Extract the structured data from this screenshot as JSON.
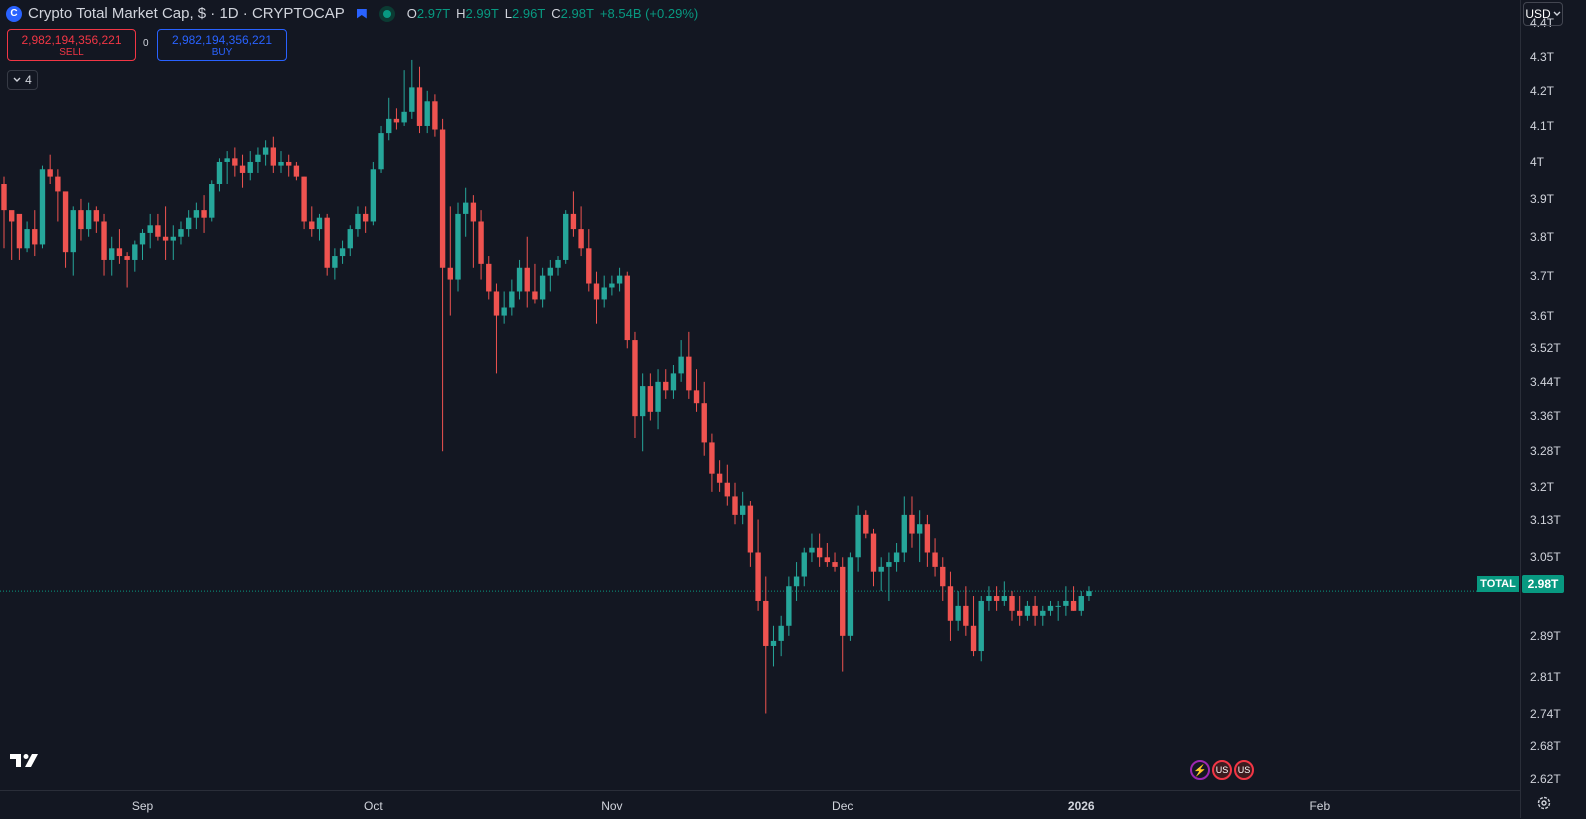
{
  "header": {
    "logo_glyph": "C",
    "title": "Crypto Total Market Cap, $ · 1D · CRYPTOCAP",
    "ohlc": [
      {
        "k": "O",
        "v": "2.97T"
      },
      {
        "k": "H",
        "v": "2.99T"
      },
      {
        "k": "L",
        "v": "2.96T"
      },
      {
        "k": "C",
        "v": "2.98T"
      },
      {
        "k": "",
        "v": "+8.54B (+0.29%)"
      }
    ]
  },
  "trade": {
    "sell_value": "2,982,194,356,221",
    "sell_label": "SELL",
    "buy_value": "2,982,194,356,221",
    "buy_label": "BUY",
    "spread": "0"
  },
  "indicators_toggle": {
    "count": "4"
  },
  "currency_button": "USD",
  "last_price_tag": "2.98T",
  "symbol_tag": "TOTAL",
  "tv_logo": "TV",
  "events": [
    "⚡",
    "US",
    "US"
  ],
  "colors": {
    "up": "#26a69a",
    "down": "#ef5350",
    "bg": "#131722",
    "grid": "#2a2e39",
    "accent": "#089981"
  },
  "chart_data": {
    "type": "candlestick",
    "title": "Crypto Total Market Cap, $ · 1D · CRYPTOCAP",
    "y_tick_labels": [
      "4.4T",
      "4.3T",
      "4.2T",
      "4.1T",
      "4T",
      "3.9T",
      "3.8T",
      "3.7T",
      "3.6T",
      "3.52T",
      "3.44T",
      "3.36T",
      "3.28T",
      "3.2T",
      "3.13T",
      "3.05T",
      "2.89T",
      "2.81T",
      "2.74T",
      "2.68T",
      "2.62T"
    ],
    "y_tick_values": [
      4.4,
      4.3,
      4.2,
      4.1,
      4.0,
      3.9,
      3.8,
      3.7,
      3.6,
      3.52,
      3.44,
      3.36,
      3.28,
      3.2,
      3.13,
      3.05,
      2.89,
      2.81,
      2.74,
      2.68,
      2.62
    ],
    "y_scale": "log",
    "ylim": [
      2.6,
      4.47
    ],
    "x_tick_labels": [
      "Sep",
      "Oct",
      "Nov",
      "Dec",
      "2026",
      "Feb"
    ],
    "x_tick_dates": [
      "2025-09-01",
      "2025-10-01",
      "2025-11-01",
      "2025-12-01",
      "2026-01-01",
      "2026-02-01"
    ],
    "x_range": [
      "2025-08-14",
      "2026-02-20"
    ],
    "current_price": 2.98,
    "candles": [
      {
        "d": "2025-08-14",
        "o": 3.94,
        "h": 3.96,
        "l": 3.77,
        "c": 3.87
      },
      {
        "d": "2025-08-15",
        "o": 3.87,
        "h": 3.86,
        "l": 3.74,
        "c": 3.84
      },
      {
        "d": "2025-08-16",
        "o": 3.86,
        "h": 3.85,
        "l": 3.74,
        "c": 3.77
      },
      {
        "d": "2025-08-17",
        "o": 3.77,
        "h": 3.84,
        "l": 3.76,
        "c": 3.82
      },
      {
        "d": "2025-08-18",
        "o": 3.82,
        "h": 3.87,
        "l": 3.75,
        "c": 3.78
      },
      {
        "d": "2025-08-19",
        "o": 3.78,
        "h": 3.99,
        "l": 3.77,
        "c": 3.98
      },
      {
        "d": "2025-08-20",
        "o": 3.98,
        "h": 4.02,
        "l": 3.94,
        "c": 3.96
      },
      {
        "d": "2025-08-21",
        "o": 3.96,
        "h": 3.98,
        "l": 3.84,
        "c": 3.92
      },
      {
        "d": "2025-08-22",
        "o": 3.92,
        "h": 3.91,
        "l": 3.72,
        "c": 3.76
      },
      {
        "d": "2025-08-23",
        "o": 3.76,
        "h": 3.88,
        "l": 3.7,
        "c": 3.87
      },
      {
        "d": "2025-08-24",
        "o": 3.87,
        "h": 3.9,
        "l": 3.79,
        "c": 3.82
      },
      {
        "d": "2025-08-25",
        "o": 3.82,
        "h": 3.89,
        "l": 3.8,
        "c": 3.87
      },
      {
        "d": "2025-08-26",
        "o": 3.87,
        "h": 3.88,
        "l": 3.81,
        "c": 3.84
      },
      {
        "d": "2025-08-27",
        "o": 3.84,
        "h": 3.86,
        "l": 3.7,
        "c": 3.74
      },
      {
        "d": "2025-08-28",
        "o": 3.74,
        "h": 3.8,
        "l": 3.7,
        "c": 3.77
      },
      {
        "d": "2025-08-29",
        "o": 3.77,
        "h": 3.82,
        "l": 3.73,
        "c": 3.75
      },
      {
        "d": "2025-08-30",
        "o": 3.75,
        "h": 3.76,
        "l": 3.67,
        "c": 3.74
      },
      {
        "d": "2025-08-31",
        "o": 3.74,
        "h": 3.79,
        "l": 3.71,
        "c": 3.78
      },
      {
        "d": "2025-09-01",
        "o": 3.78,
        "h": 3.82,
        "l": 3.74,
        "c": 3.81
      },
      {
        "d": "2025-09-02",
        "o": 3.81,
        "h": 3.86,
        "l": 3.77,
        "c": 3.83
      },
      {
        "d": "2025-09-03",
        "o": 3.83,
        "h": 3.86,
        "l": 3.79,
        "c": 3.8
      },
      {
        "d": "2025-09-04",
        "o": 3.8,
        "h": 3.88,
        "l": 3.74,
        "c": 3.79
      },
      {
        "d": "2025-09-05",
        "o": 3.79,
        "h": 3.83,
        "l": 3.74,
        "c": 3.8
      },
      {
        "d": "2025-09-06",
        "o": 3.8,
        "h": 3.84,
        "l": 3.78,
        "c": 3.82
      },
      {
        "d": "2025-09-07",
        "o": 3.82,
        "h": 3.87,
        "l": 3.8,
        "c": 3.85
      },
      {
        "d": "2025-09-08",
        "o": 3.85,
        "h": 3.89,
        "l": 3.82,
        "c": 3.87
      },
      {
        "d": "2025-09-09",
        "o": 3.87,
        "h": 3.91,
        "l": 3.81,
        "c": 3.85
      },
      {
        "d": "2025-09-10",
        "o": 3.85,
        "h": 3.95,
        "l": 3.84,
        "c": 3.94
      },
      {
        "d": "2025-09-11",
        "o": 3.94,
        "h": 4.01,
        "l": 3.92,
        "c": 4.0
      },
      {
        "d": "2025-09-12",
        "o": 4.0,
        "h": 4.03,
        "l": 3.94,
        "c": 4.01
      },
      {
        "d": "2025-09-13",
        "o": 4.01,
        "h": 4.04,
        "l": 3.96,
        "c": 3.99
      },
      {
        "d": "2025-09-14",
        "o": 3.99,
        "h": 4.02,
        "l": 3.93,
        "c": 3.97
      },
      {
        "d": "2025-09-15",
        "o": 3.97,
        "h": 4.03,
        "l": 3.95,
        "c": 4.0
      },
      {
        "d": "2025-09-16",
        "o": 4.0,
        "h": 4.04,
        "l": 3.97,
        "c": 4.02
      },
      {
        "d": "2025-09-17",
        "o": 4.02,
        "h": 4.06,
        "l": 3.99,
        "c": 4.04
      },
      {
        "d": "2025-09-18",
        "o": 4.04,
        "h": 4.07,
        "l": 3.97,
        "c": 3.99
      },
      {
        "d": "2025-09-19",
        "o": 3.99,
        "h": 4.03,
        "l": 3.97,
        "c": 4.0
      },
      {
        "d": "2025-09-20",
        "o": 4.0,
        "h": 4.02,
        "l": 3.96,
        "c": 3.99
      },
      {
        "d": "2025-09-21",
        "o": 3.99,
        "h": 4.0,
        "l": 3.95,
        "c": 3.96
      },
      {
        "d": "2025-09-22",
        "o": 3.96,
        "h": 3.96,
        "l": 3.82,
        "c": 3.84
      },
      {
        "d": "2025-09-23",
        "o": 3.84,
        "h": 3.88,
        "l": 3.8,
        "c": 3.82
      },
      {
        "d": "2025-09-24",
        "o": 3.82,
        "h": 3.86,
        "l": 3.79,
        "c": 3.85
      },
      {
        "d": "2025-09-25",
        "o": 3.85,
        "h": 3.86,
        "l": 3.7,
        "c": 3.72
      },
      {
        "d": "2025-09-26",
        "o": 3.72,
        "h": 3.77,
        "l": 3.69,
        "c": 3.75
      },
      {
        "d": "2025-09-27",
        "o": 3.75,
        "h": 3.79,
        "l": 3.73,
        "c": 3.77
      },
      {
        "d": "2025-09-28",
        "o": 3.77,
        "h": 3.83,
        "l": 3.75,
        "c": 3.82
      },
      {
        "d": "2025-09-29",
        "o": 3.82,
        "h": 3.88,
        "l": 3.8,
        "c": 3.86
      },
      {
        "d": "2025-09-30",
        "o": 3.86,
        "h": 3.88,
        "l": 3.81,
        "c": 3.84
      },
      {
        "d": "2025-10-01",
        "o": 3.84,
        "h": 4.0,
        "l": 3.83,
        "c": 3.98
      },
      {
        "d": "2025-10-02",
        "o": 3.98,
        "h": 4.1,
        "l": 3.97,
        "c": 4.08
      },
      {
        "d": "2025-10-03",
        "o": 4.08,
        "h": 4.18,
        "l": 4.06,
        "c": 4.12
      },
      {
        "d": "2025-10-04",
        "o": 4.12,
        "h": 4.15,
        "l": 4.09,
        "c": 4.11
      },
      {
        "d": "2025-10-05",
        "o": 4.11,
        "h": 4.26,
        "l": 4.1,
        "c": 4.14
      },
      {
        "d": "2025-10-06",
        "o": 4.14,
        "h": 4.29,
        "l": 4.12,
        "c": 4.21
      },
      {
        "d": "2025-10-07",
        "o": 4.21,
        "h": 4.27,
        "l": 4.08,
        "c": 4.1
      },
      {
        "d": "2025-10-08",
        "o": 4.1,
        "h": 4.2,
        "l": 4.08,
        "c": 4.17
      },
      {
        "d": "2025-10-09",
        "o": 4.17,
        "h": 4.19,
        "l": 4.07,
        "c": 4.09
      },
      {
        "d": "2025-10-10",
        "o": 4.09,
        "h": 4.12,
        "l": 3.28,
        "c": 3.72
      },
      {
        "d": "2025-10-11",
        "o": 3.72,
        "h": 3.88,
        "l": 3.6,
        "c": 3.69
      },
      {
        "d": "2025-10-12",
        "o": 3.69,
        "h": 3.89,
        "l": 3.66,
        "c": 3.86
      },
      {
        "d": "2025-10-13",
        "o": 3.86,
        "h": 3.93,
        "l": 3.8,
        "c": 3.89
      },
      {
        "d": "2025-10-14",
        "o": 3.89,
        "h": 3.91,
        "l": 3.72,
        "c": 3.84
      },
      {
        "d": "2025-10-15",
        "o": 3.84,
        "h": 3.87,
        "l": 3.69,
        "c": 3.73
      },
      {
        "d": "2025-10-16",
        "o": 3.73,
        "h": 3.75,
        "l": 3.64,
        "c": 3.66
      },
      {
        "d": "2025-10-17",
        "o": 3.66,
        "h": 3.68,
        "l": 3.46,
        "c": 3.6
      },
      {
        "d": "2025-10-18",
        "o": 3.6,
        "h": 3.66,
        "l": 3.58,
        "c": 3.62
      },
      {
        "d": "2025-10-19",
        "o": 3.62,
        "h": 3.69,
        "l": 3.6,
        "c": 3.66
      },
      {
        "d": "2025-10-20",
        "o": 3.66,
        "h": 3.74,
        "l": 3.64,
        "c": 3.72
      },
      {
        "d": "2025-10-21",
        "o": 3.72,
        "h": 3.8,
        "l": 3.62,
        "c": 3.66
      },
      {
        "d": "2025-10-22",
        "o": 3.66,
        "h": 3.73,
        "l": 3.63,
        "c": 3.64
      },
      {
        "d": "2025-10-23",
        "o": 3.64,
        "h": 3.72,
        "l": 3.62,
        "c": 3.7
      },
      {
        "d": "2025-10-24",
        "o": 3.7,
        "h": 3.74,
        "l": 3.66,
        "c": 3.72
      },
      {
        "d": "2025-10-25",
        "o": 3.72,
        "h": 3.75,
        "l": 3.7,
        "c": 3.74
      },
      {
        "d": "2025-10-26",
        "o": 3.74,
        "h": 3.87,
        "l": 3.73,
        "c": 3.86
      },
      {
        "d": "2025-10-27",
        "o": 3.86,
        "h": 3.92,
        "l": 3.8,
        "c": 3.82
      },
      {
        "d": "2025-10-28",
        "o": 3.82,
        "h": 3.88,
        "l": 3.75,
        "c": 3.77
      },
      {
        "d": "2025-10-29",
        "o": 3.77,
        "h": 3.82,
        "l": 3.66,
        "c": 3.68
      },
      {
        "d": "2025-10-30",
        "o": 3.68,
        "h": 3.71,
        "l": 3.58,
        "c": 3.64
      },
      {
        "d": "2025-10-31",
        "o": 3.64,
        "h": 3.7,
        "l": 3.62,
        "c": 3.67
      },
      {
        "d": "2025-11-01",
        "o": 3.67,
        "h": 3.7,
        "l": 3.65,
        "c": 3.68
      },
      {
        "d": "2025-11-02",
        "o": 3.68,
        "h": 3.72,
        "l": 3.66,
        "c": 3.7
      },
      {
        "d": "2025-11-03",
        "o": 3.7,
        "h": 3.71,
        "l": 3.52,
        "c": 3.54
      },
      {
        "d": "2025-11-04",
        "o": 3.54,
        "h": 3.56,
        "l": 3.31,
        "c": 3.36
      },
      {
        "d": "2025-11-05",
        "o": 3.36,
        "h": 3.46,
        "l": 3.28,
        "c": 3.43
      },
      {
        "d": "2025-11-06",
        "o": 3.43,
        "h": 3.46,
        "l": 3.35,
        "c": 3.37
      },
      {
        "d": "2025-11-07",
        "o": 3.37,
        "h": 3.47,
        "l": 3.33,
        "c": 3.44
      },
      {
        "d": "2025-11-08",
        "o": 3.44,
        "h": 3.47,
        "l": 3.4,
        "c": 3.42
      },
      {
        "d": "2025-11-09",
        "o": 3.42,
        "h": 3.48,
        "l": 3.4,
        "c": 3.46
      },
      {
        "d": "2025-11-10",
        "o": 3.46,
        "h": 3.54,
        "l": 3.44,
        "c": 3.5
      },
      {
        "d": "2025-11-11",
        "o": 3.5,
        "h": 3.56,
        "l": 3.4,
        "c": 3.42
      },
      {
        "d": "2025-11-12",
        "o": 3.42,
        "h": 3.47,
        "l": 3.37,
        "c": 3.39
      },
      {
        "d": "2025-11-13",
        "o": 3.39,
        "h": 3.44,
        "l": 3.27,
        "c": 3.3
      },
      {
        "d": "2025-11-14",
        "o": 3.3,
        "h": 3.32,
        "l": 3.19,
        "c": 3.23
      },
      {
        "d": "2025-11-15",
        "o": 3.23,
        "h": 3.26,
        "l": 3.19,
        "c": 3.21
      },
      {
        "d": "2025-11-16",
        "o": 3.21,
        "h": 3.25,
        "l": 3.16,
        "c": 3.18
      },
      {
        "d": "2025-11-17",
        "o": 3.18,
        "h": 3.21,
        "l": 3.12,
        "c": 3.14
      },
      {
        "d": "2025-11-18",
        "o": 3.14,
        "h": 3.19,
        "l": 3.12,
        "c": 3.16
      },
      {
        "d": "2025-11-19",
        "o": 3.16,
        "h": 3.17,
        "l": 3.03,
        "c": 3.06
      },
      {
        "d": "2025-11-20",
        "o": 3.06,
        "h": 3.13,
        "l": 2.94,
        "c": 2.96
      },
      {
        "d": "2025-11-21",
        "o": 2.96,
        "h": 3.01,
        "l": 2.74,
        "c": 2.87
      },
      {
        "d": "2025-11-22",
        "o": 2.87,
        "h": 2.91,
        "l": 2.83,
        "c": 2.88
      },
      {
        "d": "2025-11-23",
        "o": 2.88,
        "h": 2.93,
        "l": 2.85,
        "c": 2.91
      },
      {
        "d": "2025-11-24",
        "o": 2.91,
        "h": 3.01,
        "l": 2.89,
        "c": 2.99
      },
      {
        "d": "2025-11-25",
        "o": 2.99,
        "h": 3.04,
        "l": 2.96,
        "c": 3.01
      },
      {
        "d": "2025-11-26",
        "o": 3.01,
        "h": 3.07,
        "l": 2.99,
        "c": 3.06
      },
      {
        "d": "2025-11-27",
        "o": 3.06,
        "h": 3.1,
        "l": 3.04,
        "c": 3.07
      },
      {
        "d": "2025-11-28",
        "o": 3.07,
        "h": 3.1,
        "l": 3.03,
        "c": 3.05
      },
      {
        "d": "2025-11-29",
        "o": 3.05,
        "h": 3.08,
        "l": 3.03,
        "c": 3.04
      },
      {
        "d": "2025-11-30",
        "o": 3.04,
        "h": 3.06,
        "l": 3.02,
        "c": 3.03
      },
      {
        "d": "2025-12-01",
        "o": 3.03,
        "h": 3.05,
        "l": 2.82,
        "c": 2.89
      },
      {
        "d": "2025-12-02",
        "o": 2.89,
        "h": 3.06,
        "l": 2.88,
        "c": 3.05
      },
      {
        "d": "2025-12-03",
        "o": 3.05,
        "h": 3.16,
        "l": 3.02,
        "c": 3.14
      },
      {
        "d": "2025-12-04",
        "o": 3.14,
        "h": 3.15,
        "l": 3.09,
        "c": 3.1
      },
      {
        "d": "2025-12-05",
        "o": 3.1,
        "h": 3.11,
        "l": 2.99,
        "c": 3.02
      },
      {
        "d": "2025-12-06",
        "o": 3.02,
        "h": 3.05,
        "l": 2.98,
        "c": 3.03
      },
      {
        "d": "2025-12-07",
        "o": 3.03,
        "h": 3.06,
        "l": 2.96,
        "c": 3.04
      },
      {
        "d": "2025-12-08",
        "o": 3.04,
        "h": 3.08,
        "l": 3.02,
        "c": 3.06
      },
      {
        "d": "2025-12-09",
        "o": 3.06,
        "h": 3.18,
        "l": 3.04,
        "c": 3.14
      },
      {
        "d": "2025-12-10",
        "o": 3.14,
        "h": 3.18,
        "l": 3.07,
        "c": 3.1
      },
      {
        "d": "2025-12-11",
        "o": 3.1,
        "h": 3.15,
        "l": 3.04,
        "c": 3.12
      },
      {
        "d": "2025-12-12",
        "o": 3.12,
        "h": 3.14,
        "l": 3.03,
        "c": 3.06
      },
      {
        "d": "2025-12-13",
        "o": 3.06,
        "h": 3.09,
        "l": 3.01,
        "c": 3.03
      },
      {
        "d": "2025-12-14",
        "o": 3.03,
        "h": 3.05,
        "l": 2.96,
        "c": 2.99
      },
      {
        "d": "2025-12-15",
        "o": 2.99,
        "h": 3.02,
        "l": 2.88,
        "c": 2.92
      },
      {
        "d": "2025-12-16",
        "o": 2.92,
        "h": 2.98,
        "l": 2.9,
        "c": 2.95
      },
      {
        "d": "2025-12-17",
        "o": 2.95,
        "h": 2.99,
        "l": 2.89,
        "c": 2.91
      },
      {
        "d": "2025-12-18",
        "o": 2.91,
        "h": 2.97,
        "l": 2.85,
        "c": 2.86
      },
      {
        "d": "2025-12-19",
        "o": 2.86,
        "h": 2.97,
        "l": 2.84,
        "c": 2.96
      },
      {
        "d": "2025-12-20",
        "o": 2.96,
        "h": 2.99,
        "l": 2.94,
        "c": 2.97
      },
      {
        "d": "2025-12-21",
        "o": 2.97,
        "h": 2.99,
        "l": 2.94,
        "c": 2.96
      },
      {
        "d": "2025-12-22",
        "o": 2.96,
        "h": 3.0,
        "l": 2.95,
        "c": 2.97
      },
      {
        "d": "2025-12-23",
        "o": 2.97,
        "h": 2.98,
        "l": 2.92,
        "c": 2.94
      },
      {
        "d": "2025-12-24",
        "o": 2.94,
        "h": 2.97,
        "l": 2.91,
        "c": 2.93
      },
      {
        "d": "2025-12-25",
        "o": 2.93,
        "h": 2.96,
        "l": 2.92,
        "c": 2.95
      },
      {
        "d": "2025-12-26",
        "o": 2.95,
        "h": 2.97,
        "l": 2.91,
        "c": 2.93
      },
      {
        "d": "2025-12-27",
        "o": 2.93,
        "h": 2.95,
        "l": 2.91,
        "c": 2.94
      },
      {
        "d": "2025-12-28",
        "o": 2.94,
        "h": 2.96,
        "l": 2.93,
        "c": 2.95
      },
      {
        "d": "2025-12-29",
        "o": 2.95,
        "h": 2.96,
        "l": 2.92,
        "c": 2.95
      },
      {
        "d": "2025-12-30",
        "o": 2.95,
        "h": 2.99,
        "l": 2.93,
        "c": 2.96
      },
      {
        "d": "2025-12-31",
        "o": 2.96,
        "h": 2.99,
        "l": 2.94,
        "c": 2.94
      },
      {
        "d": "2026-01-01",
        "o": 2.94,
        "h": 2.98,
        "l": 2.93,
        "c": 2.97
      },
      {
        "d": "2026-01-02",
        "o": 2.97,
        "h": 2.99,
        "l": 2.96,
        "c": 2.98
      }
    ]
  }
}
